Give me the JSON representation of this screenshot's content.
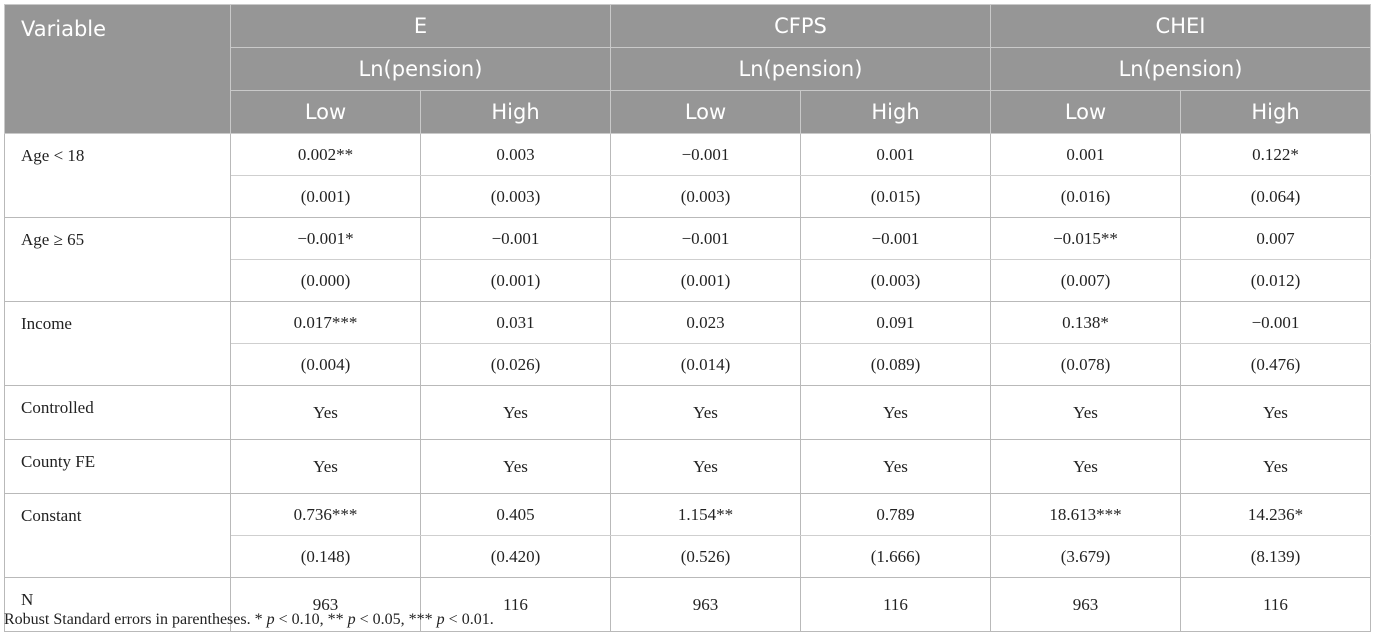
{
  "header": {
    "variable": "Variable",
    "groups": [
      {
        "name": "E",
        "dep": "Ln(pension)"
      },
      {
        "name": "CFPS",
        "dep": "Ln(pension)"
      },
      {
        "name": "CHEI",
        "dep": "Ln(pension)"
      }
    ],
    "subcols": [
      "Low",
      "High",
      "Low",
      "High",
      "Low",
      "High"
    ]
  },
  "rows": {
    "age_lt18": {
      "label": "Age < 18",
      "coef": [
        "0.002**",
        "0.003",
        "−0.001",
        "0.001",
        "0.001",
        "0.122*"
      ],
      "se": [
        "(0.001)",
        "(0.003)",
        "(0.003)",
        "(0.015)",
        "(0.016)",
        "(0.064)"
      ]
    },
    "age_ge65": {
      "label": "Age ≥ 65",
      "coef": [
        "−0.001*",
        "−0.001",
        "−0.001",
        "−0.001",
        "−0.015**",
        "0.007"
      ],
      "se": [
        "(0.000)",
        "(0.001)",
        "(0.001)",
        "(0.003)",
        "(0.007)",
        "(0.012)"
      ]
    },
    "income": {
      "label": "Income",
      "coef": [
        "0.017***",
        "0.031",
        "0.023",
        "0.091",
        "0.138*",
        "−0.001"
      ],
      "se": [
        "(0.004)",
        "(0.026)",
        "(0.014)",
        "(0.089)",
        "(0.078)",
        "(0.476)"
      ]
    },
    "controlled": {
      "label": "Controlled",
      "vals": [
        "Yes",
        "Yes",
        "Yes",
        "Yes",
        "Yes",
        "Yes"
      ]
    },
    "county_fe": {
      "label": "County FE",
      "vals": [
        "Yes",
        "Yes",
        "Yes",
        "Yes",
        "Yes",
        "Yes"
      ]
    },
    "constant": {
      "label": "Constant",
      "coef": [
        "0.736***",
        "0.405",
        "1.154**",
        "0.789",
        "18.613***",
        "14.236*"
      ],
      "se": [
        "(0.148)",
        "(0.420)",
        "(0.526)",
        "(1.666)",
        "(3.679)",
        "(8.139)"
      ]
    },
    "n": {
      "label": "N",
      "vals": [
        "963",
        "116",
        "963",
        "116",
        "963",
        "116"
      ]
    }
  },
  "note": {
    "lead": "Robust Standard errors in parentheses. * ",
    "p1": "p",
    "t1": " < 0.10, ** ",
    "p2": "p",
    "t2": " < 0.05, *** ",
    "p3": "p",
    "t3": " < 0.01."
  }
}
